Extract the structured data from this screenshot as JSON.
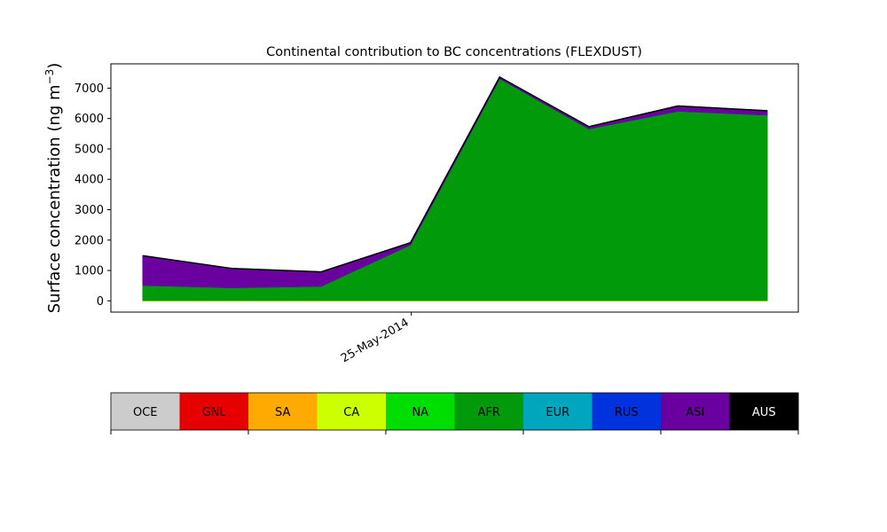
{
  "chart_data": {
    "type": "area",
    "title": "Continental contribution to BC concentrations (FLEXDUST)",
    "ylabel": "Surface concentration (ng m",
    "ylabel_superscript": "−3",
    "ylabel_suffix": ")",
    "xlabel": "",
    "x_tick_labels": [
      "25-May-2014"
    ],
    "x_tick_index": 3,
    "ylim": [
      -370,
      7800
    ],
    "yticks": [
      0,
      1000,
      2000,
      3000,
      4000,
      5000,
      6000,
      7000
    ],
    "grid": false,
    "stacked": true,
    "point_count": 8,
    "series": [
      {
        "name": "OCE",
        "color": "#cccccc",
        "values": [
          0,
          0,
          0,
          0,
          0,
          0,
          0,
          0
        ]
      },
      {
        "name": "GNL",
        "color": "#e60000",
        "values": [
          0,
          0,
          0,
          0,
          0,
          0,
          0,
          0
        ]
      },
      {
        "name": "SA",
        "color": "#ffaa00",
        "values": [
          0,
          0,
          0,
          0,
          0,
          0,
          0,
          0
        ]
      },
      {
        "name": "CA",
        "color": "#ccff00",
        "values": [
          15,
          15,
          15,
          15,
          15,
          15,
          15,
          15
        ]
      },
      {
        "name": "NA",
        "color": "#00dd00",
        "values": [
          0,
          0,
          0,
          0,
          0,
          0,
          0,
          0
        ]
      },
      {
        "name": "AFR",
        "color": "#009a0a",
        "values": [
          500,
          420,
          470,
          1830,
          7300,
          5650,
          6230,
          6100
        ]
      },
      {
        "name": "EUR",
        "color": "#00a5be",
        "values": [
          0,
          0,
          0,
          0,
          0,
          0,
          0,
          0
        ]
      },
      {
        "name": "RUS",
        "color": "#0033dd",
        "values": [
          0,
          0,
          0,
          0,
          0,
          0,
          0,
          0
        ]
      },
      {
        "name": "ASI",
        "color": "#6a009f",
        "values": [
          970,
          630,
          470,
          70,
          50,
          70,
          170,
          140
        ]
      },
      {
        "name": "AUS",
        "color": "#000000",
        "values": [
          0,
          0,
          0,
          0,
          0,
          0,
          0,
          0
        ]
      }
    ],
    "colorbar": {
      "labels": [
        "OCE",
        "GNL",
        "SA",
        "CA",
        "NA",
        "AFR",
        "EUR",
        "RUS",
        "ASI",
        "AUS"
      ],
      "colors": [
        "#cccccc",
        "#e60000",
        "#ffaa00",
        "#ccff00",
        "#00dd00",
        "#009a0a",
        "#00a5be",
        "#0033dd",
        "#6a009f",
        "#000000"
      ],
      "text_colors": [
        "#000000",
        "#000000",
        "#000000",
        "#000000",
        "#000000",
        "#000000",
        "#000000",
        "#000000",
        "#000000",
        "#ffffff"
      ]
    }
  }
}
